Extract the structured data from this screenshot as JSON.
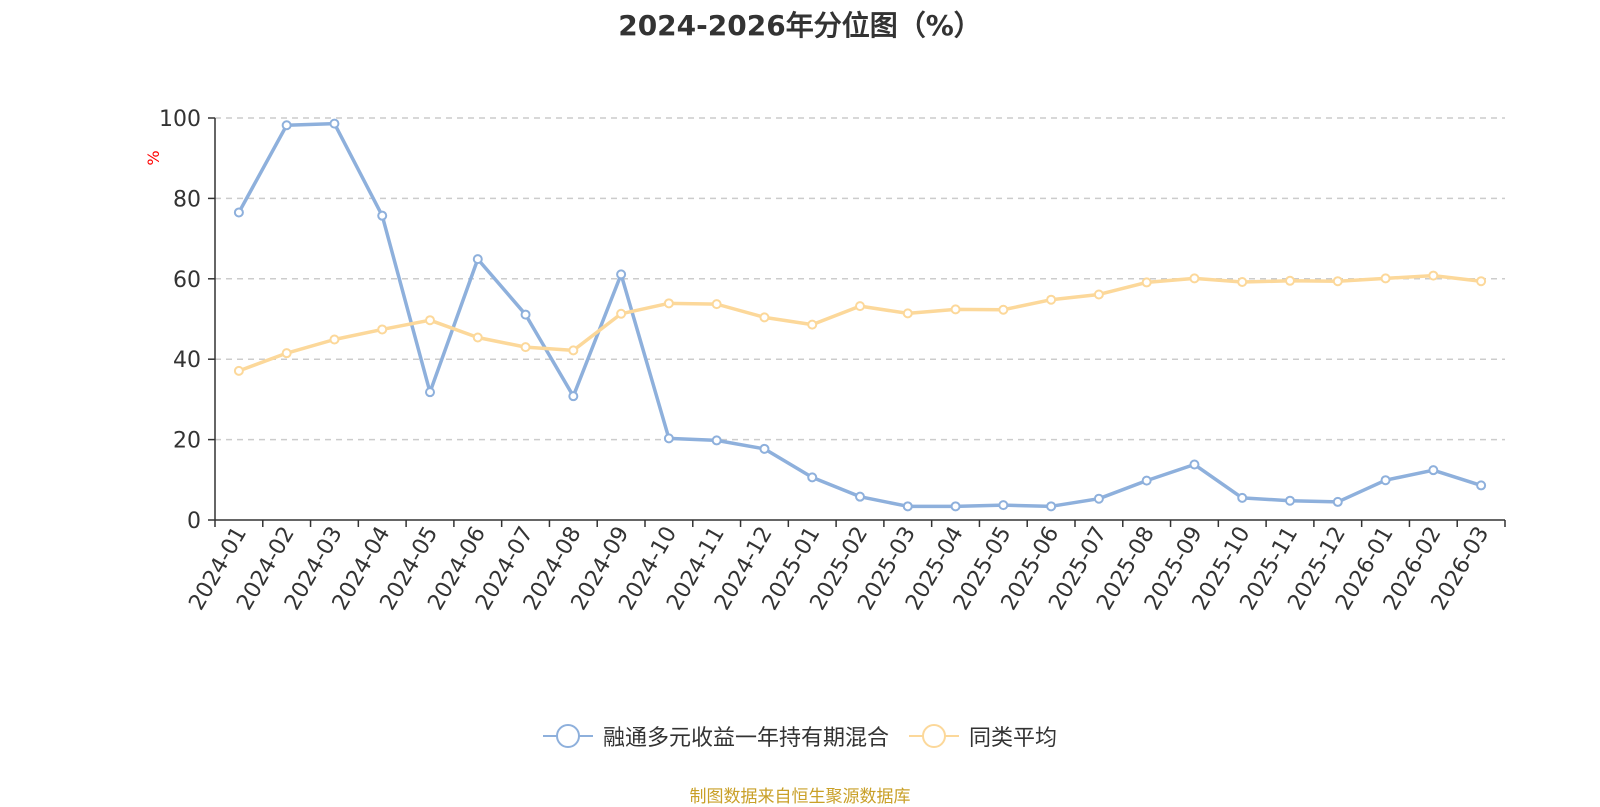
{
  "chart_data": {
    "type": "line",
    "title": "2024-2026年分位图（%）",
    "ylabel": "%",
    "xlabel": "",
    "ylim": [
      0,
      100
    ],
    "yticks": [
      0,
      20,
      40,
      60,
      80,
      100
    ],
    "grid": true,
    "legend_position": "bottom",
    "categories": [
      "2024-01",
      "2024-02",
      "2024-03",
      "2024-04",
      "2024-05",
      "2024-06",
      "2024-07",
      "2024-08",
      "2024-09",
      "2024-10",
      "2024-11",
      "2024-12",
      "2025-01",
      "2025-02",
      "2025-03",
      "2025-04",
      "2025-05",
      "2025-06",
      "2025-07",
      "2025-08",
      "2025-09",
      "2025-10",
      "2025-11",
      "2025-12",
      "2026-01",
      "2026-02",
      "2026-03"
    ],
    "series": [
      {
        "name": "融通多元收益一年持有期混合",
        "color": "#8eb0dc",
        "values": [
          76.5,
          98.2,
          98.6,
          75.7,
          31.8,
          64.9,
          51.1,
          30.8,
          61.1,
          20.3,
          19.8,
          17.7,
          10.6,
          5.8,
          3.4,
          3.4,
          3.7,
          3.4,
          5.3,
          9.8,
          13.8,
          5.5,
          4.8,
          4.5,
          9.9,
          12.4,
          8.6
        ]
      },
      {
        "name": "同类平均",
        "color": "#fcd89a",
        "values": [
          37.1,
          41.5,
          44.9,
          47.4,
          49.7,
          45.4,
          43.0,
          42.2,
          51.3,
          53.9,
          53.7,
          50.4,
          48.6,
          53.2,
          51.4,
          52.4,
          52.3,
          54.8,
          56.1,
          59.1,
          60.1,
          59.2,
          59.5,
          59.4,
          60.1,
          60.8,
          59.4
        ]
      }
    ]
  },
  "footer": {
    "source": "制图数据来自恒生聚源数据库"
  }
}
